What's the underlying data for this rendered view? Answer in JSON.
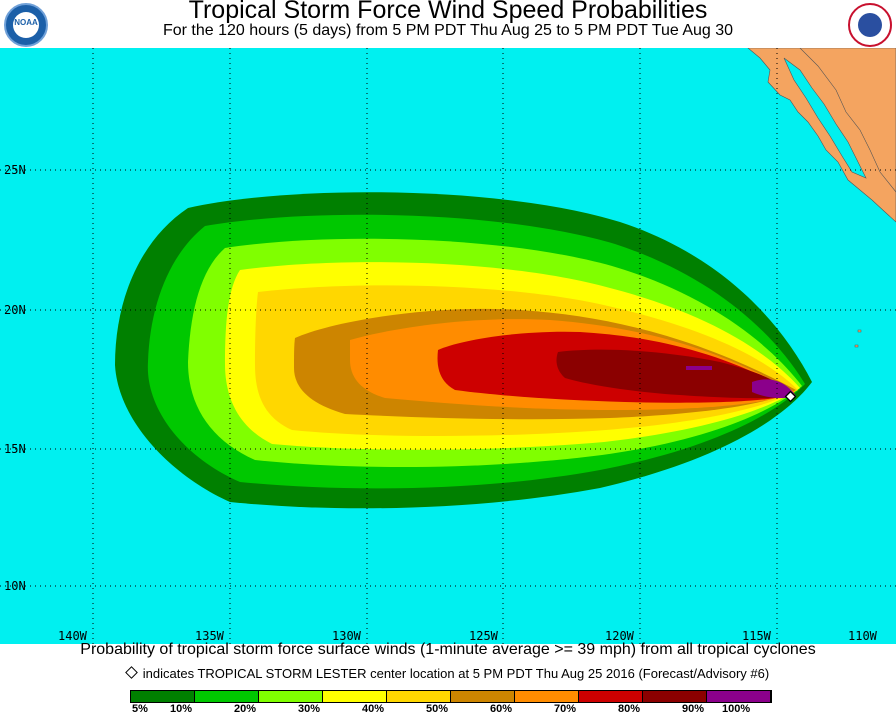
{
  "header": {
    "title": "Tropical Storm Force Wind Speed Probabilities",
    "subtitle": "For the 120 hours (5 days) from 5 PM PDT Thu Aug 25 to 5 PM PDT Tue Aug 30",
    "logo_left": "NOAA",
    "logo_right": "NATIONAL WEATHER SERVICE"
  },
  "map": {
    "ocean_color": "#00f0f0",
    "land_color": "#f4a460",
    "grid": true,
    "lat_labels": [
      "25N",
      "20N",
      "15N",
      "10N"
    ],
    "lon_labels": [
      "140W",
      "135W",
      "130W",
      "125W",
      "120W",
      "115W",
      "110W"
    ],
    "storm_marker": "diamond"
  },
  "captions": {
    "line1": "Probability of tropical storm force surface winds (1-minute average >= 39 mph) from all tropical cyclones",
    "line2": "indicates TROPICAL STORM LESTER center location at 5 PM PDT Thu Aug 25 2016 (Forecast/Advisory #6)"
  },
  "legend": {
    "colors": [
      "#008000",
      "#00c800",
      "#80ff00",
      "#ffff00",
      "#ffd700",
      "#cd8500",
      "#ff8c00",
      "#cd0000",
      "#8b0000",
      "#8b008b"
    ],
    "labels": [
      "5%",
      "10%",
      "20%",
      "30%",
      "40%",
      "50%",
      "60%",
      "70%",
      "80%",
      "90%",
      "100%"
    ]
  }
}
